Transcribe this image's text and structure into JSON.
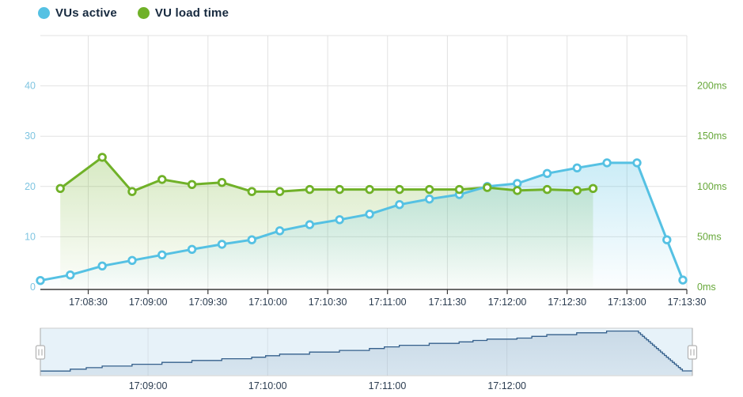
{
  "legend": {
    "items": [
      {
        "label": "VUs active",
        "color": "#55c1e3"
      },
      {
        "label": "VU load time",
        "color": "#70b128"
      }
    ]
  },
  "colors": {
    "vus_line": "#55c1e3",
    "load_line": "#70b128",
    "y_left_labels": "#7fc5e1",
    "y_right_labels": "#67a83a",
    "x_labels": "#2a3b4f",
    "gridline": "#e2e2e2",
    "axis_line": "#3a3a3a",
    "navigator_line": "#35608c",
    "navigator_bg": "#e7f2f9",
    "navigator_border": "#cdcdcd",
    "handle_border": "#b2b2b2"
  },
  "chart_data": [
    {
      "type": "line",
      "name": "main-timeseries",
      "title": "",
      "x_axis": {
        "start": "17:08:06",
        "end": "17:13:30",
        "ticks": [
          "17:08:30",
          "17:09:00",
          "17:09:30",
          "17:10:00",
          "17:10:30",
          "17:11:00",
          "17:11:30",
          "17:12:00",
          "17:12:30",
          "17:13:00",
          "17:13:30"
        ]
      },
      "y_axis_left": {
        "series": "VUs active",
        "ticks": [
          "0",
          "10",
          "20",
          "30",
          "40"
        ],
        "tick_values": [
          0,
          10,
          20,
          30,
          40
        ],
        "plot_max": 50
      },
      "y_axis_right": {
        "series": "VU load time",
        "ticks": [
          "0ms",
          "50ms",
          "100ms",
          "150ms",
          "200ms"
        ],
        "tick_values": [
          0,
          50,
          100,
          150,
          200
        ],
        "plot_max": 250
      },
      "grid": true,
      "legend_position": "top-left",
      "series": [
        {
          "name": "VUs active",
          "axis": "left",
          "color": "#55c1e3",
          "marker": "hollow-circle",
          "points": [
            {
              "t": "17:08:06",
              "v": 1.3
            },
            {
              "t": "17:08:21",
              "v": 2.4
            },
            {
              "t": "17:08:37",
              "v": 4.2
            },
            {
              "t": "17:08:52",
              "v": 5.3
            },
            {
              "t": "17:09:07",
              "v": 6.4
            },
            {
              "t": "17:09:22",
              "v": 7.5
            },
            {
              "t": "17:09:37",
              "v": 8.5
            },
            {
              "t": "17:09:52",
              "v": 9.4
            },
            {
              "t": "17:10:06",
              "v": 11.2
            },
            {
              "t": "17:10:21",
              "v": 12.4
            },
            {
              "t": "17:10:36",
              "v": 13.4
            },
            {
              "t": "17:10:51",
              "v": 14.5
            },
            {
              "t": "17:11:06",
              "v": 16.4
            },
            {
              "t": "17:11:21",
              "v": 17.5
            },
            {
              "t": "17:11:36",
              "v": 18.4
            },
            {
              "t": "17:11:50",
              "v": 20.0
            },
            {
              "t": "17:12:05",
              "v": 20.6
            },
            {
              "t": "17:12:20",
              "v": 22.6
            },
            {
              "t": "17:12:35",
              "v": 23.7
            },
            {
              "t": "17:12:50",
              "v": 24.7
            },
            {
              "t": "17:13:05",
              "v": 24.7
            },
            {
              "t": "17:13:20",
              "v": 9.4
            },
            {
              "t": "17:13:28",
              "v": 1.4
            }
          ]
        },
        {
          "name": "VU load time",
          "axis": "right",
          "color": "#70b128",
          "marker": "hollow-circle",
          "points": [
            {
              "t": "17:08:16",
              "v": 98
            },
            {
              "t": "17:08:37",
              "v": 129
            },
            {
              "t": "17:08:52",
              "v": 95
            },
            {
              "t": "17:09:07",
              "v": 107
            },
            {
              "t": "17:09:22",
              "v": 102
            },
            {
              "t": "17:09:37",
              "v": 104
            },
            {
              "t": "17:09:52",
              "v": 95
            },
            {
              "t": "17:10:06",
              "v": 95
            },
            {
              "t": "17:10:21",
              "v": 97
            },
            {
              "t": "17:10:36",
              "v": 97
            },
            {
              "t": "17:10:51",
              "v": 97
            },
            {
              "t": "17:11:06",
              "v": 97
            },
            {
              "t": "17:11:21",
              "v": 97
            },
            {
              "t": "17:11:36",
              "v": 97
            },
            {
              "t": "17:11:50",
              "v": 99
            },
            {
              "t": "17:12:05",
              "v": 96
            },
            {
              "t": "17:12:20",
              "v": 97
            },
            {
              "t": "17:12:35",
              "v": 96
            },
            {
              "t": "17:12:43",
              "v": 98
            }
          ]
        }
      ]
    },
    {
      "type": "area-step",
      "name": "navigator",
      "series_ref": "VUs active",
      "x_axis": {
        "start": "17:08:06",
        "end": "17:13:33",
        "ticks": [
          "17:09:00",
          "17:10:00",
          "17:11:00",
          "17:12:00"
        ]
      },
      "selection": "full-range"
    }
  ]
}
